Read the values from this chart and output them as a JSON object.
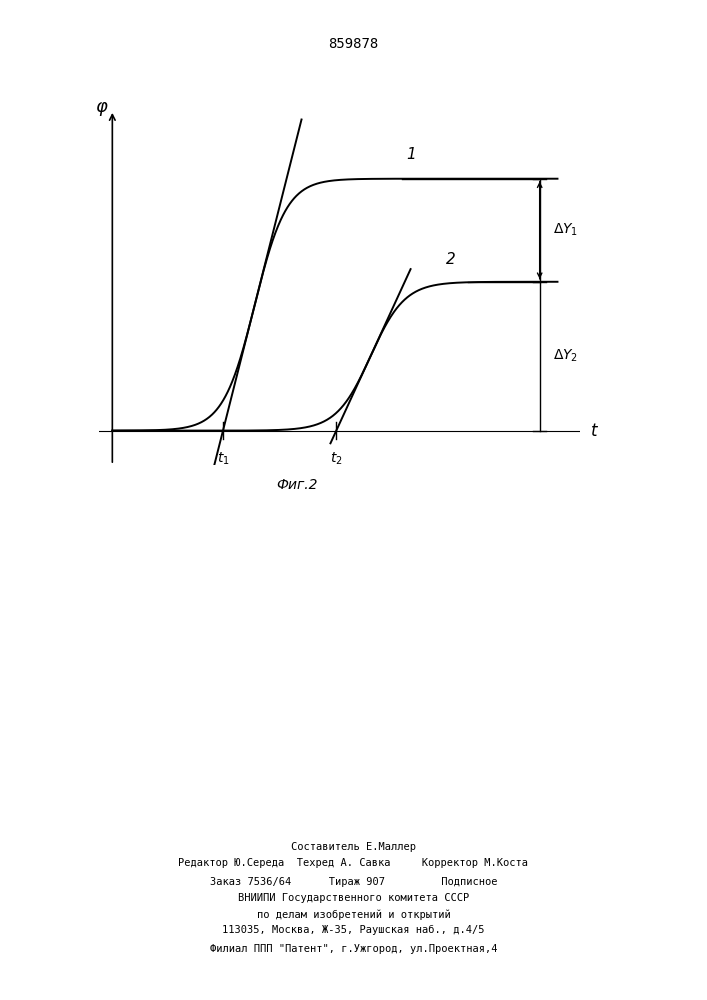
{
  "patent_number": "859878",
  "fig_label": "Фиг.2",
  "curve1_label": "1",
  "curve2_label": "2",
  "ylabel": "φ",
  "xlabel": "t",
  "t1_label": "t₁",
  "t2_label": "t₂",
  "delta_y1_label": "ΔY₁",
  "delta_y2_label": "ΔY₂",
  "bg_color": "#ffffff",
  "line_color": "#000000",
  "line_width": 1.4,
  "footer_lines": [
    "Составитель Е.Маллер",
    "Редактор Ю.Середа  Техред А. Савка     Корректор М.Коста",
    "Заказ 7536/64      Тираж 907         Подписное",
    "ВНИИПИ Государственного комитета СССР",
    "по делам изобретений и открытий",
    "113035, Москва, Ж-35, Раушская наб., д.4/5",
    "Филиал ППП \"Патент\", г.Ужгород, ул.Проектная,4"
  ]
}
